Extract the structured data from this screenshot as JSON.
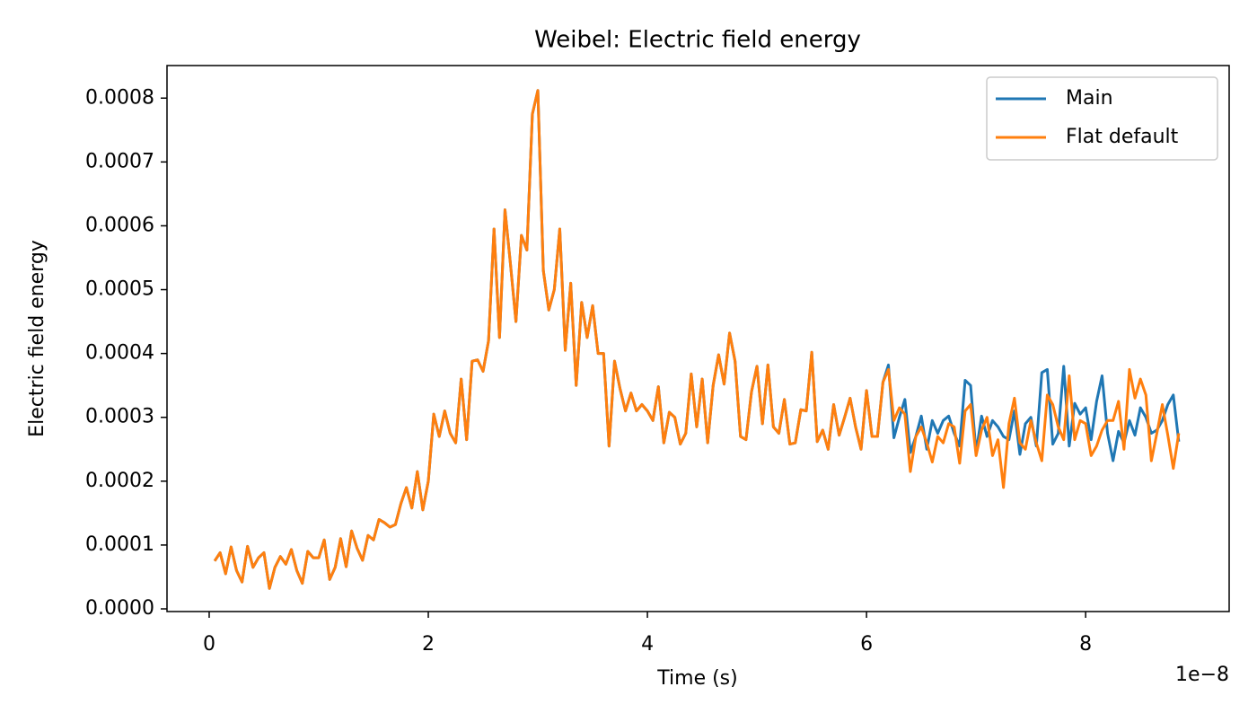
{
  "chart_data": {
    "type": "line",
    "title": "Weibel: Electric field energy",
    "xlabel": "Time (s)",
    "ylabel": "Electric field energy",
    "x_offset_label": "1e−8",
    "legend": "upper right",
    "grid": false,
    "xlim": [
      -3.85e-09,
      9.31e-08
    ],
    "xticks": [
      0,
      {
        "value": 2e-08,
        "label": "2"
      },
      {
        "value": 4e-08,
        "label": "4"
      },
      {
        "value": 6e-08,
        "label": "6"
      },
      {
        "value": 8e-08,
        "label": "8"
      }
    ],
    "ylim": [
      -4.2e-06,
      0.000851
    ],
    "yticks": [
      {
        "value": 0,
        "label": "0.0000"
      },
      {
        "value": 0.0001,
        "label": "0.0001"
      },
      {
        "value": 0.0002,
        "label": "0.0002"
      },
      {
        "value": 0.0003,
        "label": "0.0003"
      },
      {
        "value": 0.0004,
        "label": "0.0004"
      },
      {
        "value": 0.0005,
        "label": "0.0005"
      },
      {
        "value": 0.0006,
        "label": "0.0006"
      },
      {
        "value": 0.0007,
        "label": "0.0007"
      },
      {
        "value": 0.0008,
        "label": "0.0008"
      }
    ],
    "x": [
      5e-10,
      1e-09,
      1.5e-09,
      2e-09,
      2.5e-09,
      3e-09,
      3.5e-09,
      4e-09,
      4.5e-09,
      5e-09,
      5.5e-09,
      6e-09,
      6.5e-09,
      7e-09,
      7.5e-09,
      8e-09,
      8.5e-09,
      9e-09,
      9.5e-09,
      1e-08,
      1.05e-08,
      1.1e-08,
      1.15e-08,
      1.2e-08,
      1.25e-08,
      1.3e-08,
      1.35e-08,
      1.4e-08,
      1.45e-08,
      1.5e-08,
      1.55e-08,
      1.6e-08,
      1.65e-08,
      1.7e-08,
      1.75e-08,
      1.8e-08,
      1.85e-08,
      1.9e-08,
      1.95e-08,
      2e-08,
      2.05e-08,
      2.1e-08,
      2.15e-08,
      2.2e-08,
      2.25e-08,
      2.3e-08,
      2.35e-08,
      2.4e-08,
      2.45e-08,
      2.5e-08,
      2.55e-08,
      2.6e-08,
      2.65e-08,
      2.7e-08,
      2.75e-08,
      2.8e-08,
      2.85e-08,
      2.9e-08,
      2.95e-08,
      3e-08,
      3.05e-08,
      3.1e-08,
      3.15e-08,
      3.2e-08,
      3.25e-08,
      3.3e-08,
      3.35e-08,
      3.4e-08,
      3.45e-08,
      3.5e-08,
      3.55e-08,
      3.6e-08,
      3.65e-08,
      3.7e-08,
      3.75e-08,
      3.8e-08,
      3.85e-08,
      3.9e-08,
      3.95e-08,
      4e-08,
      4.05e-08,
      4.1e-08,
      4.15e-08,
      4.2e-08,
      4.25e-08,
      4.3e-08,
      4.35e-08,
      4.4e-08,
      4.45e-08,
      4.5e-08,
      4.55e-08,
      4.6e-08,
      4.65e-08,
      4.7e-08,
      4.75e-08,
      4.8e-08,
      4.85e-08,
      4.9e-08,
      4.95e-08,
      5e-08,
      5.05e-08,
      5.1e-08,
      5.15e-08,
      5.2e-08,
      5.25e-08,
      5.3e-08,
      5.35e-08,
      5.4e-08,
      5.45e-08,
      5.5e-08,
      5.55e-08,
      5.6e-08,
      5.65e-08,
      5.7e-08,
      5.75e-08,
      5.8e-08,
      5.85e-08,
      5.9e-08,
      5.95e-08,
      6e-08,
      6.05e-08,
      6.1e-08,
      6.15e-08,
      6.2e-08,
      6.25e-08,
      6.3e-08,
      6.35e-08,
      6.4e-08,
      6.45e-08,
      6.5e-08,
      6.55e-08,
      6.6e-08,
      6.65e-08,
      6.7e-08,
      6.75e-08,
      6.8e-08,
      6.85e-08,
      6.9e-08,
      6.95e-08,
      7e-08,
      7.05e-08,
      7.1e-08,
      7.15e-08,
      7.2e-08,
      7.25e-08,
      7.3e-08,
      7.35e-08,
      7.4e-08,
      7.45e-08,
      7.5e-08,
      7.55e-08,
      7.6e-08,
      7.65e-08,
      7.7e-08,
      7.75e-08,
      7.8e-08,
      7.85e-08,
      7.9e-08,
      7.95e-08,
      8e-08,
      8.05e-08,
      8.1e-08,
      8.15e-08,
      8.2e-08,
      8.25e-08,
      8.3e-08,
      8.35e-08,
      8.4e-08,
      8.45e-08,
      8.5e-08,
      8.55e-08,
      8.6e-08,
      8.65e-08,
      8.7e-08,
      8.75e-08,
      8.8e-08,
      8.85e-08
    ],
    "series": [
      {
        "name": "Main",
        "color": "#1f77b4",
        "values": [
          7.5e-05,
          8.8e-05,
          5.5e-05,
          9.7e-05,
          6e-05,
          4.2e-05,
          9.8e-05,
          6.5e-05,
          8e-05,
          8.8e-05,
          3.2e-05,
          6.5e-05,
          8.2e-05,
          7e-05,
          9.3e-05,
          6e-05,
          4e-05,
          9e-05,
          8e-05,
          8e-05,
          0.000108,
          4.6e-05,
          6.5e-05,
          0.00011,
          6.6e-05,
          0.000122,
          9.5e-05,
          7.6e-05,
          0.000115,
          0.000108,
          0.00014,
          0.000135,
          0.000128,
          0.000132,
          0.000165,
          0.00019,
          0.000158,
          0.000215,
          0.000155,
          0.0002,
          0.000305,
          0.00027,
          0.00031,
          0.000275,
          0.00026,
          0.00036,
          0.000265,
          0.000388,
          0.00039,
          0.000372,
          0.00042,
          0.000595,
          0.000425,
          0.000625,
          0.00054,
          0.00045,
          0.000585,
          0.000562,
          0.000775,
          0.000812,
          0.00053,
          0.000468,
          0.0005,
          0.000595,
          0.000405,
          0.00051,
          0.00035,
          0.00048,
          0.000425,
          0.000475,
          0.0004,
          0.0004,
          0.000255,
          0.000388,
          0.000345,
          0.00031,
          0.000338,
          0.00031,
          0.00032,
          0.00031,
          0.000295,
          0.000348,
          0.00026,
          0.000308,
          0.0003,
          0.000258,
          0.000275,
          0.000368,
          0.000285,
          0.00036,
          0.00026,
          0.00035,
          0.000398,
          0.000352,
          0.000432,
          0.000388,
          0.00027,
          0.000265,
          0.00034,
          0.00038,
          0.00029,
          0.000382,
          0.000285,
          0.000275,
          0.000328,
          0.000258,
          0.00026,
          0.000312,
          0.00031,
          0.000402,
          0.000262,
          0.00028,
          0.00025,
          0.00032,
          0.000272,
          0.0003,
          0.00033,
          0.000285,
          0.00025,
          0.000342,
          0.00027,
          0.00027,
          0.000355,
          0.000382,
          0.000268,
          0.0003,
          0.000328,
          0.000245,
          0.00027,
          0.000302,
          0.00025,
          0.000295,
          0.000275,
          0.000295,
          0.000302,
          0.000275,
          0.000255,
          0.000358,
          0.00035,
          0.000245,
          0.000302,
          0.00027,
          0.000295,
          0.000285,
          0.00027,
          0.000265,
          0.00031,
          0.000242,
          0.00029,
          0.0003,
          0.000255,
          0.00037,
          0.000375,
          0.000258,
          0.000275,
          0.00038,
          0.000255,
          0.000322,
          0.000305,
          0.000315,
          0.000265,
          0.000325,
          0.000365,
          0.000275,
          0.000232,
          0.000278,
          0.00026,
          0.000295,
          0.000272,
          0.000315,
          0.0003,
          0.000275,
          0.00028,
          0.000295,
          0.00032,
          0.000335,
          0.000262
        ]
      },
      {
        "name": "Flat default",
        "color": "#ff7f0e",
        "values": [
          7.5e-05,
          8.8e-05,
          5.5e-05,
          9.7e-05,
          6e-05,
          4.2e-05,
          9.8e-05,
          6.5e-05,
          8e-05,
          8.8e-05,
          3.2e-05,
          6.5e-05,
          8.2e-05,
          7e-05,
          9.3e-05,
          6e-05,
          4e-05,
          9e-05,
          8e-05,
          8e-05,
          0.000108,
          4.6e-05,
          6.5e-05,
          0.00011,
          6.6e-05,
          0.000122,
          9.5e-05,
          7.6e-05,
          0.000115,
          0.000108,
          0.00014,
          0.000135,
          0.000128,
          0.000132,
          0.000165,
          0.00019,
          0.000158,
          0.000215,
          0.000155,
          0.0002,
          0.000305,
          0.00027,
          0.00031,
          0.000275,
          0.00026,
          0.00036,
          0.000265,
          0.000388,
          0.00039,
          0.000372,
          0.00042,
          0.000595,
          0.000425,
          0.000625,
          0.00054,
          0.00045,
          0.000585,
          0.000562,
          0.000775,
          0.000812,
          0.00053,
          0.000468,
          0.0005,
          0.000595,
          0.000405,
          0.00051,
          0.00035,
          0.00048,
          0.000425,
          0.000475,
          0.0004,
          0.0004,
          0.000255,
          0.000388,
          0.000345,
          0.00031,
          0.000338,
          0.00031,
          0.00032,
          0.00031,
          0.000295,
          0.000348,
          0.00026,
          0.000308,
          0.0003,
          0.000258,
          0.000275,
          0.000368,
          0.000285,
          0.00036,
          0.00026,
          0.00035,
          0.000398,
          0.000352,
          0.000432,
          0.000388,
          0.00027,
          0.000265,
          0.00034,
          0.00038,
          0.00029,
          0.000382,
          0.000285,
          0.000275,
          0.000328,
          0.000258,
          0.00026,
          0.000312,
          0.00031,
          0.000402,
          0.000262,
          0.00028,
          0.00025,
          0.00032,
          0.000272,
          0.0003,
          0.00033,
          0.000285,
          0.00025,
          0.000342,
          0.00027,
          0.00027,
          0.000355,
          0.000375,
          0.000295,
          0.000315,
          0.000305,
          0.000215,
          0.00027,
          0.000285,
          0.00026,
          0.00023,
          0.00027,
          0.00026,
          0.00029,
          0.000285,
          0.000228,
          0.00031,
          0.00032,
          0.00024,
          0.00028,
          0.0003,
          0.00024,
          0.000265,
          0.00019,
          0.00029,
          0.00033,
          0.00026,
          0.00025,
          0.000295,
          0.00026,
          0.000232,
          0.000335,
          0.00032,
          0.000285,
          0.000265,
          0.000365,
          0.000265,
          0.000295,
          0.00029,
          0.00024,
          0.000255,
          0.00028,
          0.000295,
          0.000295,
          0.000325,
          0.00025,
          0.000375,
          0.00033,
          0.00036,
          0.000335,
          0.000232,
          0.000275,
          0.00032,
          0.000272,
          0.00022,
          0.000275
        ]
      }
    ]
  }
}
